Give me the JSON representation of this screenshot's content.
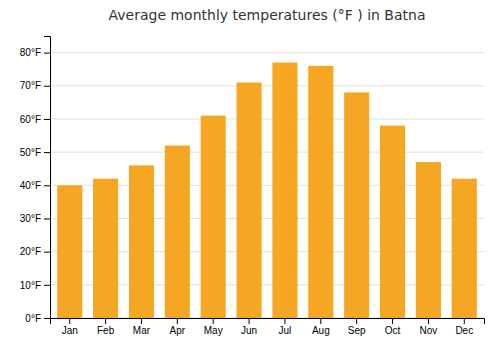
{
  "chart_data": {
    "type": "bar",
    "title": "Average monthly temperatures (°F ) in Batna",
    "categories": [
      "Jan",
      "Feb",
      "Mar",
      "Apr",
      "May",
      "Jun",
      "Jul",
      "Aug",
      "Sep",
      "Oct",
      "Nov",
      "Dec"
    ],
    "values": [
      40,
      42,
      46,
      52,
      61,
      71,
      77,
      76,
      68,
      58,
      47,
      42
    ],
    "color": "#F5A623",
    "ylim": [
      0,
      85
    ],
    "yticks": [
      {
        "value": 0,
        "label": "0°F"
      },
      {
        "value": 10,
        "label": "10°F"
      },
      {
        "value": 20,
        "label": "20°F"
      },
      {
        "value": 30,
        "label": "30°F"
      },
      {
        "value": 40,
        "label": "40°F"
      },
      {
        "value": 50,
        "label": "50°F"
      },
      {
        "value": 60,
        "label": "60°F"
      },
      {
        "value": 70,
        "label": "70°F"
      },
      {
        "value": 80,
        "label": "80°F"
      }
    ],
    "grid": true
  }
}
